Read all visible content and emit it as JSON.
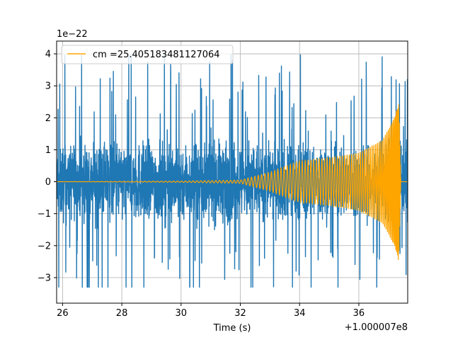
{
  "chart_data": {
    "type": "line",
    "title": "",
    "xlabel": "Time (s)",
    "ylabel": "",
    "x_offset_text": "+1.000007e8",
    "y_offset_text": "1e−22",
    "xlim": [
      25.8,
      37.65
    ],
    "ylim": [
      -3.8,
      4.4
    ],
    "x_ticks": [
      26,
      28,
      30,
      32,
      34,
      36
    ],
    "x_tick_labels": [
      "26",
      "28",
      "30",
      "32",
      "34",
      "36"
    ],
    "y_ticks": [
      -3,
      -2,
      -1,
      0,
      1,
      2,
      3,
      4
    ],
    "y_tick_labels": [
      "−3",
      "−2",
      "−1",
      "0",
      "1",
      "2",
      "3",
      "4"
    ],
    "grid": true,
    "legend": {
      "placement": "top-left"
    },
    "series": [
      {
        "name": "",
        "color": "#1f77b4",
        "kind": "noise strain",
        "x_range": [
          25.8,
          37.65
        ],
        "envelope": {
          "typical_max": 2.0,
          "typical_min": -2.0,
          "peak_max": 4.0,
          "peak_min": -3.3
        }
      },
      {
        "name": "cm =25.405183481127064",
        "color": "#ffa500",
        "kind": "chirp template",
        "x_range": [
          25.8,
          37.65
        ],
        "amplitude_envelope": [
          {
            "x": 25.8,
            "y": 0.0
          },
          {
            "x": 30.0,
            "y": 0.02
          },
          {
            "x": 32.0,
            "y": 0.05
          },
          {
            "x": 33.0,
            "y": 0.3
          },
          {
            "x": 34.0,
            "y": 0.65
          },
          {
            "x": 35.0,
            "y": 0.75
          },
          {
            "x": 36.0,
            "y": 0.9
          },
          {
            "x": 36.8,
            "y": 1.3
          },
          {
            "x": 37.2,
            "y": 2.0
          },
          {
            "x": 37.35,
            "y": 2.5
          },
          {
            "x": 37.42,
            "y": 0.0
          },
          {
            "x": 37.65,
            "y": 0.0
          }
        ]
      }
    ]
  }
}
